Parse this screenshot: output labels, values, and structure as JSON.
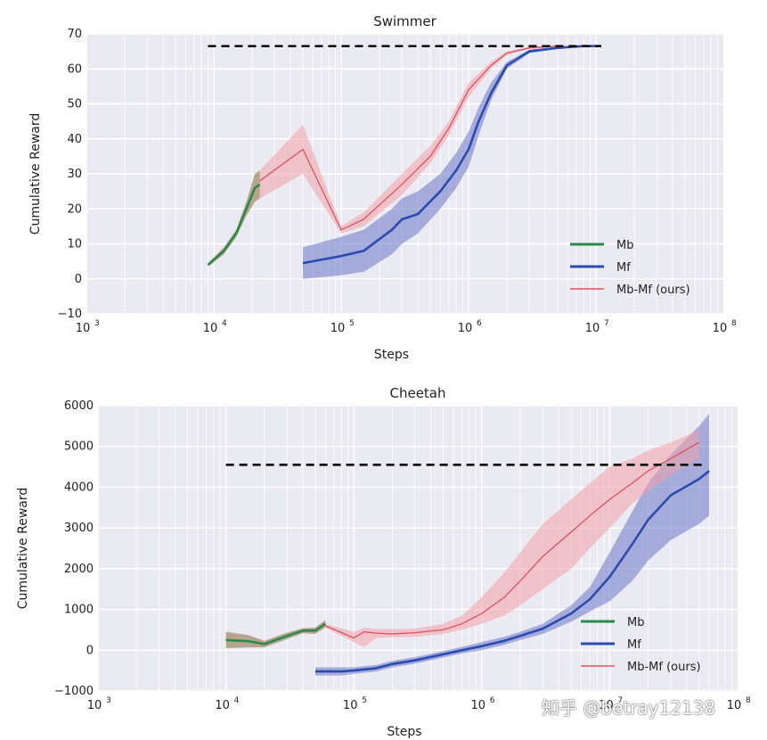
{
  "chart_data": [
    {
      "type": "line",
      "title": "Swimmer",
      "xlabel": "Steps",
      "ylabel": "Cumulative Reward",
      "xscale": "log",
      "xlim_exp": [
        3,
        8
      ],
      "ylim": [
        -10,
        70
      ],
      "yticks": [
        -10,
        0,
        10,
        20,
        30,
        40,
        50,
        60,
        70
      ],
      "grid": true,
      "legend_position": "lower-right",
      "reference_line": {
        "y": 66.5,
        "x_start": 9000,
        "x_end": 11000000,
        "style": "dashed",
        "color": "#000000"
      },
      "series": [
        {
          "name": "Mb",
          "color": "#2a8a4a",
          "band_color": "#8a6a3a",
          "x": [
            9000,
            12000,
            15000,
            18000,
            21000,
            23000
          ],
          "y": [
            4,
            8,
            13,
            20,
            26,
            27
          ],
          "band": [
            [
              3.5,
              4.5
            ],
            [
              7,
              9
            ],
            [
              12,
              14
            ],
            [
              18,
              22
            ],
            [
              22,
              30
            ],
            [
              23,
              31
            ]
          ]
        },
        {
          "name": "Mf",
          "color": "#2a4cb0",
          "band_color": "#6a76c8",
          "x": [
            50000,
            100000,
            150000,
            250000,
            300000,
            400000,
            600000,
            800000,
            1000000,
            1200000,
            1500000,
            2000000,
            3000000,
            5000000,
            8000000,
            11000000
          ],
          "y": [
            4.5,
            6.5,
            8,
            14,
            17,
            18.5,
            25,
            31,
            37,
            45,
            53,
            61,
            65,
            66,
            66.5,
            66.5
          ],
          "band": [
            [
              0,
              9
            ],
            [
              1,
              12
            ],
            [
              2,
              14
            ],
            [
              7,
              20
            ],
            [
              10,
              23
            ],
            [
              13,
              25
            ],
            [
              20,
              30
            ],
            [
              26,
              36
            ],
            [
              32,
              42
            ],
            [
              41,
              49
            ],
            [
              51,
              56
            ],
            [
              60,
              62
            ],
            [
              64.5,
              65.5
            ],
            [
              65.7,
              66.3
            ],
            [
              66.3,
              66.7
            ],
            [
              66.3,
              66.7
            ]
          ]
        },
        {
          "name": "Mb-Mf (ours)",
          "color": "#e05060",
          "band_color": "#f2a0a8",
          "x": [
            23000,
            50000,
            100000,
            150000,
            300000,
            500000,
            700000,
            1000000,
            1500000,
            2000000,
            3000000,
            5000000
          ],
          "y": [
            28,
            37,
            14,
            17,
            27,
            35,
            43,
            54,
            61,
            64.5,
            66,
            66.5
          ],
          "band": [
            [
              23,
              31
            ],
            [
              30,
              44
            ],
            [
              13,
              15
            ],
            [
              15,
              19
            ],
            [
              24,
              30
            ],
            [
              33,
              38
            ],
            [
              41,
              45
            ],
            [
              52,
              56
            ],
            [
              60,
              62
            ],
            [
              64,
              65
            ],
            [
              65.7,
              66.3
            ],
            [
              66.3,
              66.7
            ]
          ]
        }
      ]
    },
    {
      "type": "line",
      "title": "Cheetah",
      "xlabel": "Steps",
      "ylabel": "Cumulative Reward",
      "xscale": "log",
      "xlim_exp": [
        3,
        8
      ],
      "ylim": [
        -1000,
        6000
      ],
      "yticks": [
        -1000,
        0,
        1000,
        2000,
        3000,
        4000,
        5000,
        6000
      ],
      "grid": true,
      "legend_position": "lower-right",
      "reference_line": {
        "y": 4550,
        "x_start": 10000,
        "x_end": 55000000,
        "style": "dashed",
        "color": "#000000"
      },
      "series": [
        {
          "name": "Mb",
          "color": "#2a8a4a",
          "band_color": "#8a6a3a",
          "x": [
            10000,
            15000,
            20000,
            30000,
            40000,
            50000,
            60000
          ],
          "y": [
            250,
            220,
            150,
            350,
            480,
            480,
            650
          ],
          "band": [
            [
              50,
              450
            ],
            [
              70,
              370
            ],
            [
              70,
              230
            ],
            [
              270,
              430
            ],
            [
              420,
              540
            ],
            [
              400,
              560
            ],
            [
              560,
              740
            ]
          ]
        },
        {
          "name": "Mf",
          "color": "#2a4cb0",
          "band_color": "#6a76c8",
          "x": [
            50000,
            80000,
            100000,
            150000,
            200000,
            300000,
            500000,
            700000,
            1000000,
            1500000,
            2000000,
            3000000,
            5000000,
            7000000,
            10000000,
            15000000,
            20000000,
            30000000,
            50000000,
            60000000
          ],
          "y": [
            -520,
            -520,
            -500,
            -440,
            -340,
            -250,
            -100,
            0,
            100,
            230,
            350,
            530,
            900,
            1250,
            1800,
            2600,
            3200,
            3800,
            4200,
            4400
          ],
          "band": [
            [
              -620,
              -420
            ],
            [
              -620,
              -420
            ],
            [
              -580,
              -420
            ],
            [
              -520,
              -360
            ],
            [
              -420,
              -260
            ],
            [
              -330,
              -170
            ],
            [
              -180,
              -20
            ],
            [
              -80,
              80
            ],
            [
              0,
              200
            ],
            [
              130,
              330
            ],
            [
              250,
              450
            ],
            [
              400,
              650
            ],
            [
              700,
              1100
            ],
            [
              950,
              1550
            ],
            [
              1200,
              2400
            ],
            [
              1700,
              3400
            ],
            [
              2200,
              4100
            ],
            [
              2700,
              4800
            ],
            [
              3100,
              5500
            ],
            [
              3300,
              5800
            ]
          ]
        },
        {
          "name": "Mb-Mf (ours)",
          "color": "#e05060",
          "band_color": "#f2a0a8",
          "x": [
            60000,
            100000,
            120000,
            150000,
            200000,
            300000,
            500000,
            700000,
            1000000,
            1500000,
            2000000,
            3000000,
            5000000,
            7000000,
            10000000,
            15000000,
            20000000,
            30000000,
            50000000
          ],
          "y": [
            600,
            300,
            450,
            420,
            400,
            430,
            500,
            650,
            900,
            1300,
            1700,
            2300,
            2900,
            3300,
            3700,
            4100,
            4400,
            4700,
            5100
          ],
          "band": [
            [
              550,
              650
            ],
            [
              200,
              450
            ],
            [
              80,
              550
            ],
            [
              300,
              520
            ],
            [
              320,
              520
            ],
            [
              330,
              530
            ],
            [
              400,
              650
            ],
            [
              500,
              850
            ],
            [
              650,
              1300
            ],
            [
              850,
              1900
            ],
            [
              1100,
              2400
            ],
            [
              1500,
              3100
            ],
            [
              2000,
              3700
            ],
            [
              2500,
              4100
            ],
            [
              3000,
              4500
            ],
            [
              3600,
              4700
            ],
            [
              3900,
              4900
            ],
            [
              4300,
              5100
            ],
            [
              4700,
              5400
            ]
          ]
        }
      ]
    }
  ],
  "watermark": "知乎 @betray12138"
}
